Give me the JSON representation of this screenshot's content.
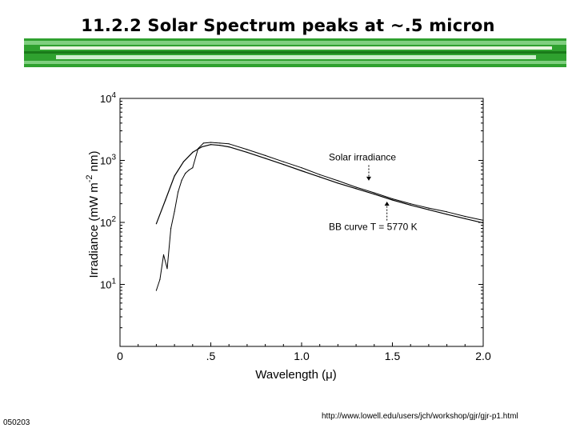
{
  "slide": {
    "title": "11.2.2 Solar Spectrum peaks at ~.5 micron",
    "banner_colors": [
      "#1a7a1a",
      "#2fa12f",
      "#7fcf7f",
      "#e8f5e0"
    ],
    "footer_code": "050203",
    "footer_url": "http://www.lowell.edu/users/jch/workshop/gjr/gjr-p1.html"
  },
  "chart_data": {
    "type": "line",
    "xlabel": "Wavelength (μ)",
    "ylabel": "Irradiance (mW m^-2 nm)",
    "ylabel_parts": [
      "Irradiance (mW m",
      "-2",
      " nm)"
    ],
    "x_ticks": [
      "0",
      ".5",
      "1.0",
      "1.5",
      "2.0"
    ],
    "x_tick_values": [
      0,
      0.5,
      1.0,
      1.5,
      2.0
    ],
    "xlim": [
      0,
      2.0
    ],
    "y_scale": "log",
    "ylim": [
      1,
      10000
    ],
    "y_ticks": [
      {
        "base": "10",
        "exp": "1",
        "value": 10
      },
      {
        "base": "10",
        "exp": "2",
        "value": 100
      },
      {
        "base": "10",
        "exp": "3",
        "value": 1000
      },
      {
        "base": "10",
        "exp": "4",
        "value": 10000
      }
    ],
    "annotations": [
      {
        "text": "Solar irradiance",
        "x": 1.15,
        "y": 1000
      },
      {
        "text": "BB curve T = 5770 K",
        "x": 1.15,
        "y": 75
      }
    ],
    "series": [
      {
        "style": "solid",
        "x": [
          0.2,
          0.25,
          0.3,
          0.35,
          0.4,
          0.45,
          0.5,
          0.55,
          0.6,
          0.7,
          0.8,
          0.9,
          1.0,
          1.1,
          1.2,
          1.3,
          1.4,
          1.5,
          1.6,
          1.7,
          1.8,
          1.9,
          2.0
        ],
        "y": [
          95,
          230,
          560,
          950,
          1350,
          1650,
          1800,
          1750,
          1650,
          1350,
          1080,
          860,
          680,
          540,
          430,
          350,
          285,
          230,
          190,
          160,
          135,
          115,
          98
        ]
      },
      {
        "style": "noisy",
        "x": [
          0.2,
          0.22,
          0.24,
          0.26,
          0.28,
          0.3,
          0.32,
          0.34,
          0.36,
          0.38,
          0.4,
          0.43,
          0.46,
          0.5,
          0.55,
          0.6,
          0.7,
          0.8,
          0.9,
          1.0,
          1.1,
          1.2,
          1.3,
          1.4,
          1.5,
          1.6,
          1.7,
          1.8,
          1.9,
          2.0
        ],
        "y": [
          8,
          12,
          30,
          18,
          80,
          150,
          310,
          480,
          620,
          700,
          760,
          1550,
          1900,
          1950,
          1900,
          1850,
          1500,
          1200,
          950,
          760,
          590,
          470,
          370,
          300,
          240,
          200,
          170,
          148,
          125,
          108
        ]
      }
    ]
  }
}
